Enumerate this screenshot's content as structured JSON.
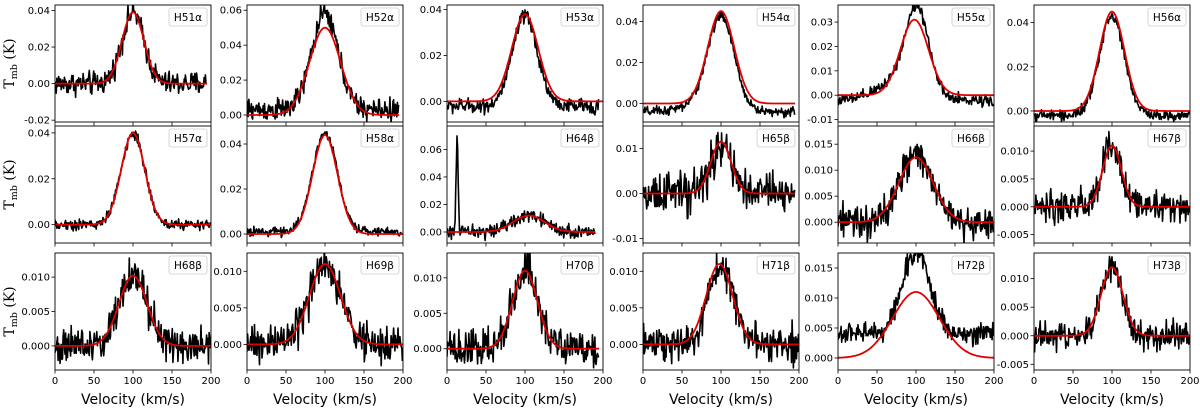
{
  "figure": {
    "xlabel": "Velocity (km/s)",
    "ylabel": "T",
    "ylabel_sub": "mb",
    "ylabel_unit": "(K)",
    "observed_color": "#000000",
    "fit_color": "#e00000"
  },
  "chart_data": [
    {
      "type": "line",
      "label": "H51α",
      "xlim": [
        0,
        200
      ],
      "ylim": [
        -0.021,
        0.043
      ],
      "xticks": [
        0,
        50,
        100,
        150,
        200
      ],
      "yticks": [
        -0.02,
        0.0,
        0.02,
        0.04
      ],
      "yticklabels": [
        "-0.02",
        "0.00",
        "0.02",
        "0.04"
      ],
      "peak_center": 100,
      "peak_amp": 0.039,
      "peak_sigma": 14,
      "noise": 0.004,
      "baseline": 0.0,
      "data_xmax": 195,
      "wing": 0.0,
      "fit_center": 100,
      "fit_amp": 0.039,
      "fit_sigma": 14,
      "fit_xmax": 195
    },
    {
      "type": "line",
      "label": "H52α",
      "xlim": [
        0,
        200
      ],
      "ylim": [
        -0.004,
        0.063
      ],
      "xticks": [
        0,
        50,
        100,
        150,
        200
      ],
      "yticks": [
        0.0,
        0.02,
        0.04,
        0.06
      ],
      "yticklabels": [
        "0.00",
        "0.02",
        "0.04",
        "0.06"
      ],
      "peak_center": 100,
      "peak_amp": 0.055,
      "peak_sigma": 17,
      "noise": 0.004,
      "baseline": 0.003,
      "data_xmax": 195,
      "wing": 0.0,
      "fit_center": 100,
      "fit_amp": 0.05,
      "fit_sigma": 20,
      "fit_xmax": 195
    },
    {
      "type": "line",
      "label": "H53α",
      "xlim": [
        0,
        200
      ],
      "ylim": [
        -0.009,
        0.042
      ],
      "xticks": [
        0,
        50,
        100,
        150,
        200
      ],
      "yticks": [
        0.0,
        0.02,
        0.04
      ],
      "yticklabels": [
        "0.00",
        "0.02",
        "0.04"
      ],
      "peak_center": 100,
      "peak_amp": 0.039,
      "peak_sigma": 16,
      "noise": 0.002,
      "baseline": -0.002,
      "data_xmax": 195,
      "wing": 0.0,
      "fit_center": 100,
      "fit_amp": 0.038,
      "fit_sigma": 17,
      "fit_xmax": 200
    },
    {
      "type": "line",
      "label": "H54α",
      "xlim": [
        0,
        200
      ],
      "ylim": [
        -0.009,
        0.048
      ],
      "xticks": [
        0,
        50,
        100,
        150,
        200
      ],
      "yticks": [
        0.0,
        0.02,
        0.04
      ],
      "yticklabels": [
        "0.00",
        "0.02",
        "0.04"
      ],
      "peak_center": 100,
      "peak_amp": 0.045,
      "peak_sigma": 17,
      "noise": 0.0015,
      "baseline": -0.004,
      "data_xmax": 195,
      "wing": 0.003,
      "fit_center": 100,
      "fit_amp": 0.045,
      "fit_sigma": 17,
      "fit_xmax": 195
    },
    {
      "type": "line",
      "label": "H55α",
      "xlim": [
        0,
        200
      ],
      "ylim": [
        -0.011,
        0.037
      ],
      "xticks": [
        0,
        50,
        100,
        150,
        200
      ],
      "yticks": [
        -0.01,
        0.0,
        0.01,
        0.02,
        0.03
      ],
      "yticklabels": [
        "-0.01",
        "0.00",
        "0.01",
        "0.02",
        "0.03"
      ],
      "peak_center": 102,
      "peak_amp": 0.034,
      "peak_sigma": 15,
      "noise": 0.0015,
      "baseline": -0.002,
      "data_xmax": 200,
      "wing": 0.008,
      "fit_center": 98,
      "fit_amp": 0.031,
      "fit_sigma": 18,
      "fit_xmax": 200
    },
    {
      "type": "line",
      "label": "H56α",
      "xlim": [
        0,
        200
      ],
      "ylim": [
        -0.005,
        0.048
      ],
      "xticks": [
        0,
        50,
        100,
        150,
        200
      ],
      "yticks": [
        0.0,
        0.02,
        0.04
      ],
      "yticklabels": [
        "0.00",
        "0.02",
        "0.04"
      ],
      "peak_center": 100,
      "peak_amp": 0.045,
      "peak_sigma": 16,
      "noise": 0.0015,
      "baseline": -0.002,
      "data_xmax": 200,
      "wing": 0.0,
      "fit_center": 100,
      "fit_amp": 0.045,
      "fit_sigma": 16,
      "fit_xmax": 200
    },
    {
      "type": "line",
      "label": "H57α",
      "xlim": [
        0,
        200
      ],
      "ylim": [
        -0.008,
        0.043
      ],
      "xticks": [
        0,
        50,
        100,
        150,
        200
      ],
      "yticks": [
        0.0,
        0.02,
        0.04
      ],
      "yticklabels": [
        "0.00",
        "0.02",
        "0.04"
      ],
      "peak_center": 100,
      "peak_amp": 0.04,
      "peak_sigma": 15,
      "noise": 0.0015,
      "baseline": 0.0,
      "data_xmax": 200,
      "wing": 0.0,
      "fit_center": 100,
      "fit_amp": 0.04,
      "fit_sigma": 15,
      "fit_xmax": 200
    },
    {
      "type": "line",
      "label": "H58α",
      "xlim": [
        0,
        200
      ],
      "ylim": [
        -0.004,
        0.048
      ],
      "xticks": [
        0,
        50,
        100,
        150,
        200
      ],
      "yticks": [
        0.0,
        0.02,
        0.04
      ],
      "yticklabels": [
        "0.00",
        "0.02",
        "0.04"
      ],
      "peak_center": 100,
      "peak_amp": 0.044,
      "peak_sigma": 16,
      "noise": 0.0012,
      "baseline": 0.001,
      "data_xmax": 200,
      "wing": 0.0,
      "fit_center": 100,
      "fit_amp": 0.044,
      "fit_sigma": 16,
      "fit_xmax": 200
    },
    {
      "type": "line",
      "label": "H64β",
      "xlim": [
        0,
        200
      ],
      "ylim": [
        -0.008,
        0.077
      ],
      "xticks": [
        0,
        50,
        100,
        150,
        200
      ],
      "yticks": [
        0.0,
        0.02,
        0.04,
        0.06
      ],
      "yticklabels": [
        "0.00",
        "0.02",
        "0.04",
        "0.06"
      ],
      "peak_center": 105,
      "peak_amp": 0.012,
      "peak_sigma": 20,
      "noise": 0.003,
      "baseline": 0.0,
      "data_xmax": 190,
      "wing": 0.0,
      "spike_x": 13,
      "spike_amp": 0.07,
      "fit_center": 105,
      "fit_amp": 0.012,
      "fit_sigma": 20,
      "fit_xmax": 190
    },
    {
      "type": "line",
      "label": "H65β",
      "xlim": [
        0,
        200
      ],
      "ylim": [
        -0.011,
        0.015
      ],
      "xticks": [
        0,
        50,
        100,
        150,
        200
      ],
      "yticks": [
        -0.01,
        0.0,
        0.01
      ],
      "yticklabels": [
        "-0.01",
        "0.00",
        "0.01"
      ],
      "peak_center": 100,
      "peak_amp": 0.011,
      "peak_sigma": 13,
      "noise": 0.0028,
      "baseline": 0.0,
      "data_xmax": 195,
      "wing": 0.0,
      "fit_center": 100,
      "fit_amp": 0.0115,
      "fit_sigma": 13,
      "fit_xmax": 195
    },
    {
      "type": "line",
      "label": "H66β",
      "xlim": [
        0,
        200
      ],
      "ylim": [
        -0.004,
        0.0185
      ],
      "xticks": [
        0,
        50,
        100,
        150,
        200
      ],
      "yticks": [
        0.0,
        0.005,
        0.01,
        0.015
      ],
      "yticklabels": [
        "0.000",
        "0.005",
        "0.010",
        "0.015"
      ],
      "peak_center": 100,
      "peak_amp": 0.013,
      "peak_sigma": 20,
      "noise": 0.002,
      "baseline": 0.0,
      "data_xmax": 200,
      "wing": 0.0,
      "fit_center": 100,
      "fit_amp": 0.0125,
      "fit_sigma": 22,
      "fit_xmax": 200
    },
    {
      "type": "line",
      "label": "H67β",
      "xlim": [
        0,
        200
      ],
      "ylim": [
        -0.0065,
        0.0145
      ],
      "xticks": [
        0,
        50,
        100,
        150,
        200
      ],
      "yticks": [
        -0.005,
        0.0,
        0.005,
        0.01
      ],
      "yticklabels": [
        "-0.005",
        "0.000",
        "0.005",
        "0.010"
      ],
      "peak_center": 100,
      "peak_amp": 0.011,
      "peak_sigma": 12,
      "noise": 0.0018,
      "baseline": 0.0,
      "data_xmax": 200,
      "wing": 0.0,
      "fit_center": 100,
      "fit_amp": 0.011,
      "fit_sigma": 12,
      "fit_xmax": 200
    },
    {
      "type": "line",
      "label": "H68β",
      "xlim": [
        0,
        200
      ],
      "ylim": [
        -0.0035,
        0.0135
      ],
      "xticks": [
        0,
        50,
        100,
        150,
        200
      ],
      "yticks": [
        0.0,
        0.005,
        0.01
      ],
      "yticklabels": [
        "0.000",
        "0.005",
        "0.010"
      ],
      "peak_center": 100,
      "peak_amp": 0.0105,
      "peak_sigma": 18,
      "noise": 0.0017,
      "baseline": 0.0,
      "data_xmax": 200,
      "wing": 0.0,
      "fit_center": 100,
      "fit_amp": 0.0102,
      "fit_sigma": 18,
      "fit_xmax": 200
    },
    {
      "type": "line",
      "label": "H69β",
      "xlim": [
        0,
        200
      ],
      "ylim": [
        -0.0035,
        0.0125
      ],
      "xticks": [
        0,
        50,
        100,
        150,
        200
      ],
      "yticks": [
        0.0,
        0.005,
        0.01
      ],
      "yticklabels": [
        "0.000",
        "0.005",
        "0.010"
      ],
      "peak_center": 100,
      "peak_amp": 0.011,
      "peak_sigma": 20,
      "noise": 0.0016,
      "baseline": 0.0,
      "data_xmax": 200,
      "wing": 0.0,
      "fit_center": 100,
      "fit_amp": 0.011,
      "fit_sigma": 20,
      "fit_xmax": 200
    },
    {
      "type": "line",
      "label": "H70β",
      "xlim": [
        0,
        200
      ],
      "ylim": [
        -0.003,
        0.0135
      ],
      "xticks": [
        0,
        50,
        100,
        150,
        200
      ],
      "yticks": [
        0.0,
        0.005,
        0.01
      ],
      "yticklabels": [
        "0.000",
        "0.005",
        "0.010"
      ],
      "peak_center": 100,
      "peak_amp": 0.011,
      "peak_sigma": 16,
      "noise": 0.0016,
      "baseline": 0.0,
      "data_xmax": 195,
      "wing": 0.0,
      "fit_center": 100,
      "fit_amp": 0.011,
      "fit_sigma": 16,
      "fit_xmax": 195
    },
    {
      "type": "line",
      "label": "H71β",
      "xlim": [
        0,
        200
      ],
      "ylim": [
        -0.0035,
        0.0125
      ],
      "xticks": [
        0,
        50,
        100,
        150,
        200
      ],
      "yticks": [
        0.0,
        0.005,
        0.01
      ],
      "yticklabels": [
        "0.000",
        "0.005",
        "0.010"
      ],
      "peak_center": 100,
      "peak_amp": 0.011,
      "peak_sigma": 16,
      "noise": 0.0015,
      "baseline": 0.0,
      "data_xmax": 200,
      "wing": 0.0,
      "fit_center": 98,
      "fit_amp": 0.011,
      "fit_sigma": 17,
      "fit_xmax": 200
    },
    {
      "type": "line",
      "label": "H72β",
      "xlim": [
        0,
        200
      ],
      "ylim": [
        -0.002,
        0.0175
      ],
      "xticks": [
        0,
        50,
        100,
        150,
        200
      ],
      "yticks": [
        0.0,
        0.005,
        0.01,
        0.015
      ],
      "yticklabels": [
        "0.000",
        "0.005",
        "0.010",
        "0.015"
      ],
      "peak_center": 100,
      "peak_amp": 0.014,
      "peak_sigma": 17,
      "noise": 0.0012,
      "baseline": 0.004,
      "data_xmax": 200,
      "wing": 0.0,
      "fit_center": 100,
      "fit_amp": 0.011,
      "fit_sigma": 30,
      "fit_xmax": 200
    },
    {
      "type": "line",
      "label": "H73β",
      "xlim": [
        0,
        200
      ],
      "ylim": [
        -0.006,
        0.0145
      ],
      "xticks": [
        0,
        50,
        100,
        150,
        200
      ],
      "yticks": [
        -0.005,
        0.0,
        0.005,
        0.01
      ],
      "yticklabels": [
        "-0.005",
        "0.000",
        "0.005",
        "0.010"
      ],
      "peak_center": 100,
      "peak_amp": 0.012,
      "peak_sigma": 14,
      "noise": 0.0015,
      "baseline": 0.0,
      "data_xmax": 200,
      "wing": 0.0,
      "fit_center": 100,
      "fit_amp": 0.012,
      "fit_sigma": 14,
      "fit_xmax": 200
    }
  ]
}
